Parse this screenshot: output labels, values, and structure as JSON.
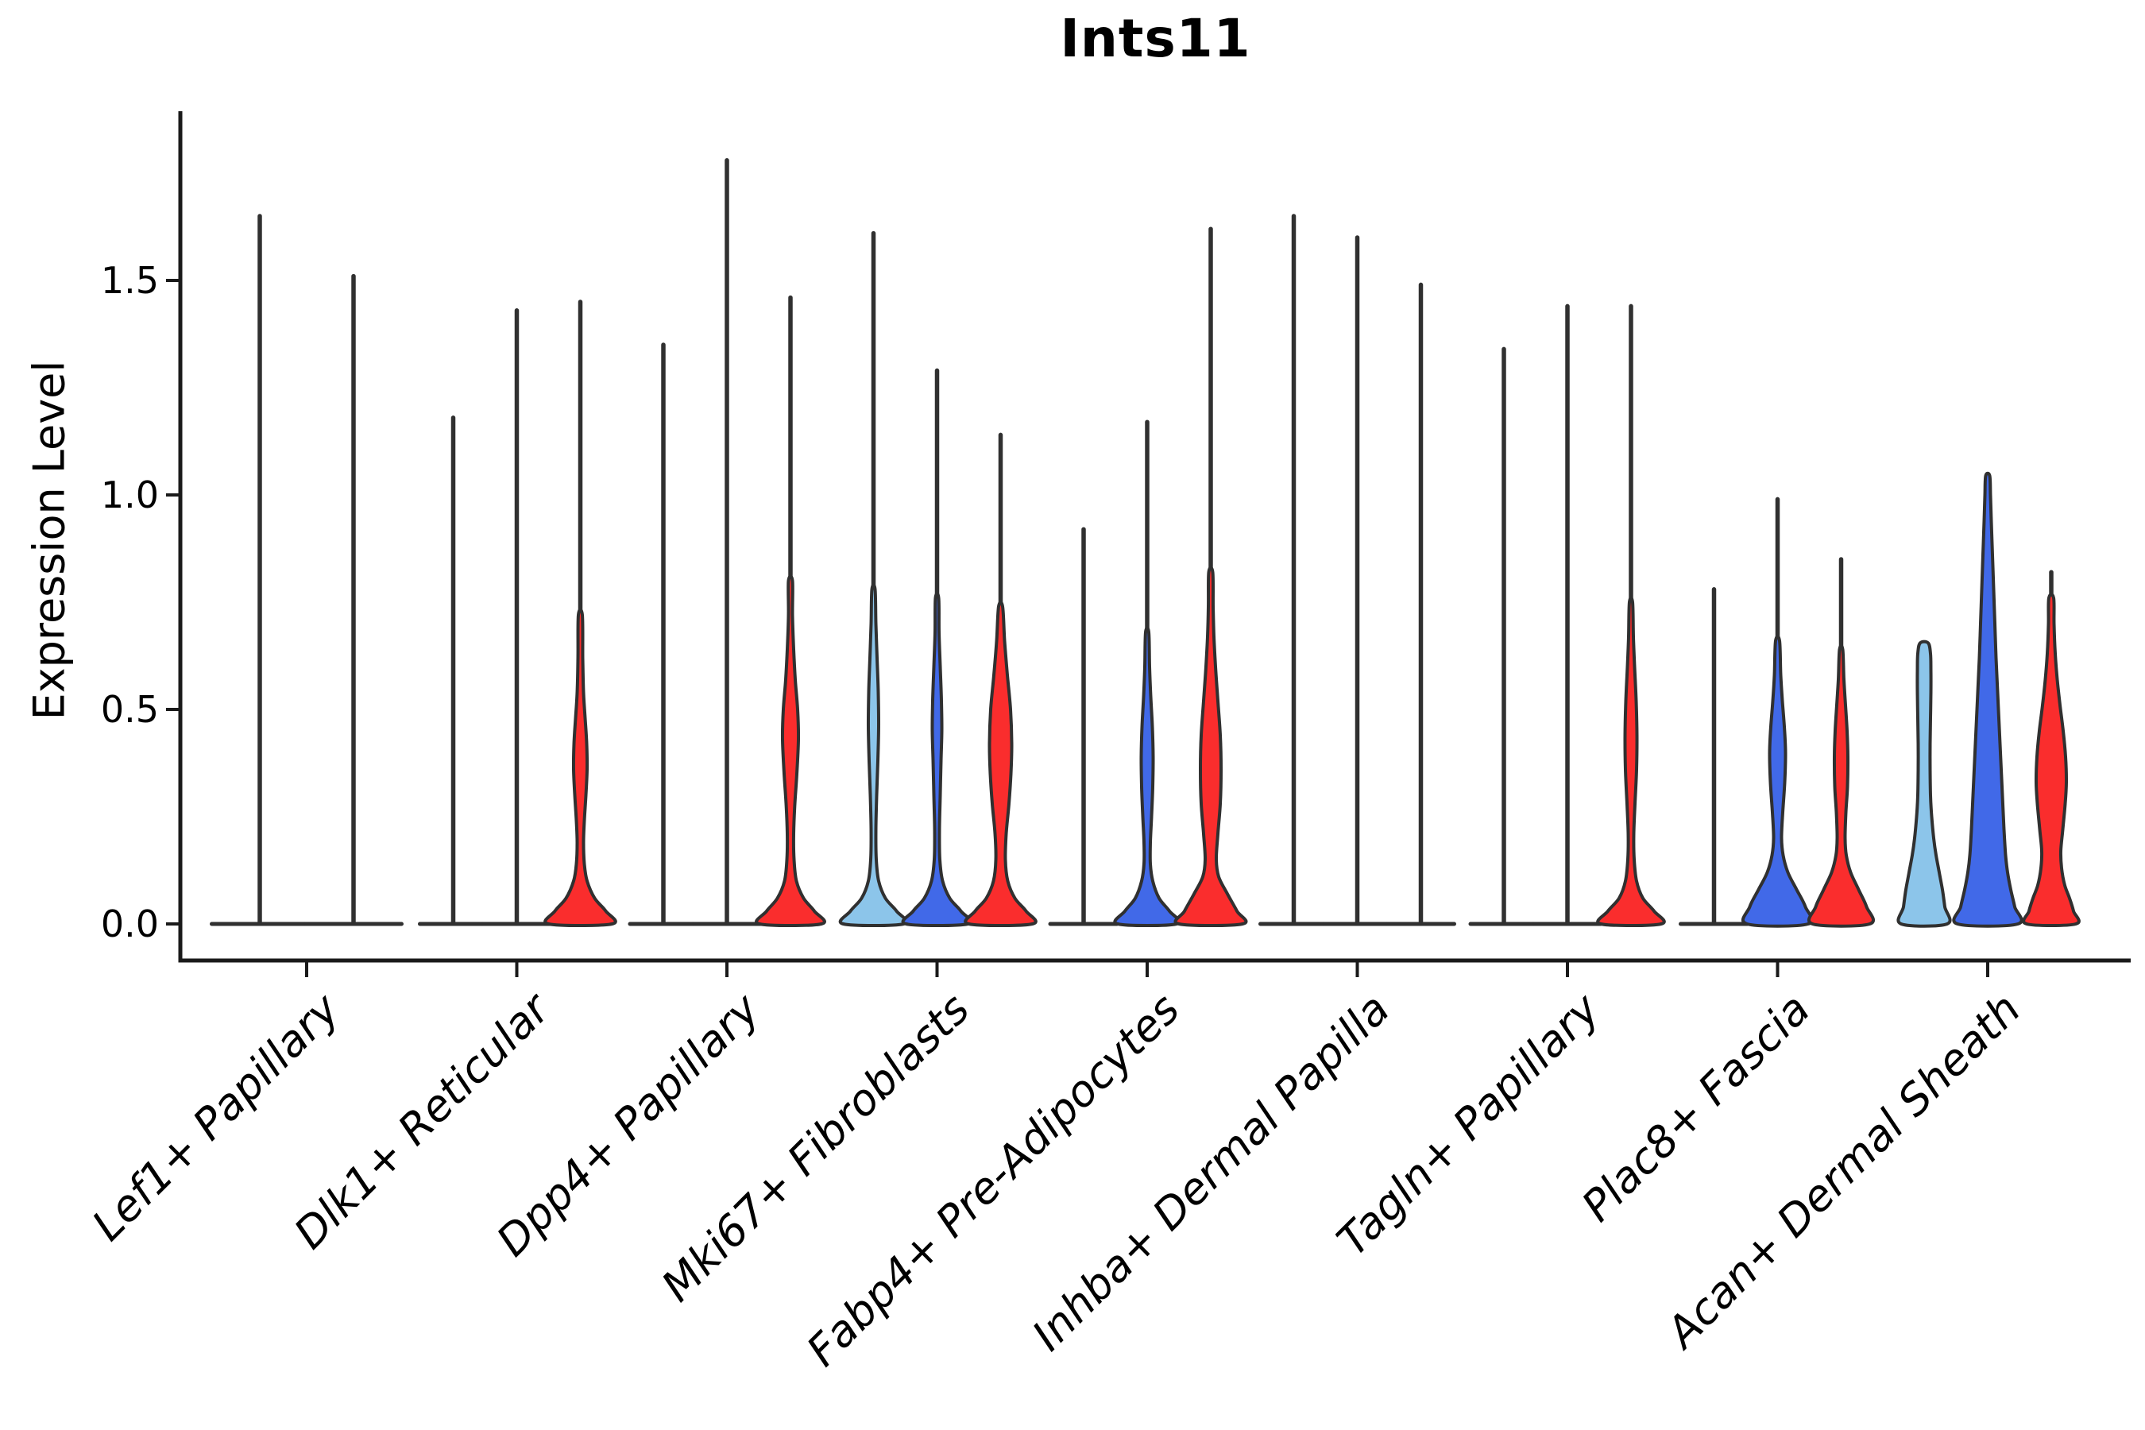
{
  "chart_data": {
    "type": "violin",
    "title": "Ints11",
    "ylabel": "Expression Level",
    "xlabel": "",
    "ytick_labels": [
      "0.0",
      "0.5",
      "1.0",
      "1.5"
    ],
    "ytick_values": [
      0,
      0.5,
      1.0,
      1.5
    ],
    "ylim": [
      -0.09,
      1.9
    ],
    "grid": false,
    "legend": "none",
    "categories": [
      "Lef1+ Papillary",
      "Dlk1+ Reticular",
      "Dpp4+ Papillary",
      "Mki67+ Fibroblasts",
      "Fabp4+ Pre-Adipocytes",
      "Inhba+ Dermal Papilla",
      "Tagln+ Papillary",
      "Plac8+ Fascia",
      "Acan+ Dermal Sheath"
    ],
    "colors": {
      "light_blue": "#8CC5EA",
      "dark_blue": "#4169E8",
      "red": "#FA2D2D",
      "outline": "#303030",
      "axis": "#1a1a1a"
    },
    "note": "Each group shows violins of expression; 'max' is the top of the thin density tail (expression units); 'body' is the visible violin body profile as [expression_value, full_width_px] pairs; body=null means the violin is fully collapsed flat at 0.",
    "groups": [
      {
        "category": "Lef1+ Papillary",
        "violins": [
          {
            "fill": null,
            "max": 1.65,
            "body": null
          },
          {
            "fill": null,
            "max": 1.51,
            "body": null
          }
        ]
      },
      {
        "category": "Dlk1+ Reticular",
        "violins": [
          {
            "fill": "#8CC5EA",
            "max": 1.18,
            "body": null
          },
          {
            "fill": "#4169E8",
            "max": 1.43,
            "body": null
          },
          {
            "fill": "#FA2D2D",
            "max": 1.45,
            "body": [
              [
                0,
                80
              ],
              [
                0.03,
                64
              ],
              [
                0.06,
                36
              ],
              [
                0.1,
                17
              ],
              [
                0.14,
                10
              ],
              [
                0.19,
                8
              ],
              [
                0.24,
                10
              ],
              [
                0.3,
                14
              ],
              [
                0.36,
                17
              ],
              [
                0.42,
                16
              ],
              [
                0.48,
                12
              ],
              [
                0.54,
                8
              ],
              [
                0.62,
                6
              ],
              [
                0.72,
                5
              ]
            ]
          }
        ]
      },
      {
        "category": "Dpp4+ Papillary",
        "violins": [
          {
            "fill": "#8CC5EA",
            "max": 1.35,
            "body": null
          },
          {
            "fill": "#4169E8",
            "max": 1.78,
            "body": null
          },
          {
            "fill": "#FA2D2D",
            "max": 1.46,
            "body": [
              [
                0,
                78
              ],
              [
                0.03,
                60
              ],
              [
                0.06,
                33
              ],
              [
                0.1,
                15
              ],
              [
                0.15,
                9
              ],
              [
                0.21,
                8
              ],
              [
                0.28,
                11
              ],
              [
                0.35,
                16
              ],
              [
                0.43,
                20
              ],
              [
                0.5,
                18
              ],
              [
                0.57,
                12
              ],
              [
                0.64,
                8
              ],
              [
                0.72,
                5
              ],
              [
                0.8,
                5
              ]
            ]
          }
        ]
      },
      {
        "category": "Mki67+ Fibroblasts",
        "violins": [
          {
            "fill": "#8CC5EA",
            "max": 1.61,
            "body": [
              [
                0,
                76
              ],
              [
                0.03,
                58
              ],
              [
                0.06,
                30
              ],
              [
                0.1,
                13
              ],
              [
                0.15,
                7
              ],
              [
                0.22,
                6
              ],
              [
                0.3,
                8
              ],
              [
                0.38,
                11
              ],
              [
                0.46,
                13
              ],
              [
                0.54,
                12
              ],
              [
                0.62,
                9
              ],
              [
                0.7,
                6
              ],
              [
                0.78,
                4
              ]
            ]
          },
          {
            "fill": "#4169E8",
            "max": 1.29,
            "body": [
              [
                0,
                78
              ],
              [
                0.03,
                60
              ],
              [
                0.06,
                32
              ],
              [
                0.1,
                14
              ],
              [
                0.15,
                7
              ],
              [
                0.22,
                6
              ],
              [
                0.3,
                8
              ],
              [
                0.38,
                10
              ],
              [
                0.45,
                12
              ],
              [
                0.52,
                11
              ],
              [
                0.6,
                8
              ],
              [
                0.68,
                5
              ],
              [
                0.76,
                4
              ]
            ]
          },
          {
            "fill": "#FA2D2D",
            "max": 1.14,
            "body": [
              [
                0,
                80
              ],
              [
                0.03,
                64
              ],
              [
                0.06,
                36
              ],
              [
                0.1,
                18
              ],
              [
                0.15,
                12
              ],
              [
                0.21,
                14
              ],
              [
                0.28,
                21
              ],
              [
                0.35,
                26
              ],
              [
                0.42,
                28
              ],
              [
                0.5,
                25
              ],
              [
                0.58,
                17
              ],
              [
                0.66,
                10
              ],
              [
                0.74,
                5
              ]
            ]
          }
        ]
      },
      {
        "category": "Fabp4+ Pre-Adipocytes",
        "violins": [
          {
            "fill": "#8CC5EA",
            "max": 0.92,
            "body": null
          },
          {
            "fill": "#4169E8",
            "max": 1.17,
            "body": [
              [
                0,
                74
              ],
              [
                0.03,
                56
              ],
              [
                0.06,
                30
              ],
              [
                0.1,
                14
              ],
              [
                0.14,
                8
              ],
              [
                0.19,
                8
              ],
              [
                0.25,
                11
              ],
              [
                0.32,
                14
              ],
              [
                0.39,
                15
              ],
              [
                0.46,
                13
              ],
              [
                0.53,
                9
              ],
              [
                0.6,
                6
              ],
              [
                0.68,
                4
              ]
            ]
          },
          {
            "fill": "#FA2D2D",
            "max": 1.62,
            "body": [
              [
                0,
                80
              ],
              [
                0.03,
                66
              ],
              [
                0.07,
                42
              ],
              [
                0.11,
                20
              ],
              [
                0.15,
                14
              ],
              [
                0.21,
                18
              ],
              [
                0.28,
                24
              ],
              [
                0.36,
                26
              ],
              [
                0.44,
                24
              ],
              [
                0.52,
                18
              ],
              [
                0.6,
                12
              ],
              [
                0.67,
                8
              ],
              [
                0.74,
                6
              ],
              [
                0.82,
                5
              ]
            ]
          }
        ]
      },
      {
        "category": "Inhba+ Dermal Papilla",
        "violins": [
          {
            "fill": "#8CC5EA",
            "max": 1.65,
            "body": null
          },
          {
            "fill": "#4169E8",
            "max": 1.6,
            "body": null
          },
          {
            "fill": "#FA2D2D",
            "max": 1.49,
            "body": null
          }
        ]
      },
      {
        "category": "Tagln+ Papillary",
        "violins": [
          {
            "fill": "#8CC5EA",
            "max": 1.34,
            "body": null
          },
          {
            "fill": "#4169E8",
            "max": 1.44,
            "body": null
          },
          {
            "fill": "#FA2D2D",
            "max": 1.44,
            "body": [
              [
                0,
                76
              ],
              [
                0.03,
                58
              ],
              [
                0.06,
                30
              ],
              [
                0.1,
                14
              ],
              [
                0.15,
                8
              ],
              [
                0.21,
                7
              ],
              [
                0.28,
                10
              ],
              [
                0.36,
                14
              ],
              [
                0.44,
                15
              ],
              [
                0.52,
                13
              ],
              [
                0.6,
                9
              ],
              [
                0.67,
                6
              ],
              [
                0.75,
                4
              ]
            ]
          }
        ]
      },
      {
        "category": "Plac8+ Fascia",
        "violins": [
          {
            "fill": "#8CC5EA",
            "max": 0.78,
            "body": null
          },
          {
            "fill": "#4169E8",
            "max": 0.99,
            "body": [
              [
                0,
                77
              ],
              [
                0.04,
                70
              ],
              [
                0.08,
                48
              ],
              [
                0.12,
                26
              ],
              [
                0.16,
                14
              ],
              [
                0.2,
                10
              ],
              [
                0.26,
                13
              ],
              [
                0.33,
                18
              ],
              [
                0.4,
                20
              ],
              [
                0.46,
                17
              ],
              [
                0.52,
                12
              ],
              [
                0.58,
                8
              ],
              [
                0.66,
                5
              ]
            ]
          },
          {
            "fill": "#FA2D2D",
            "max": 0.85,
            "body": [
              [
                0,
                72
              ],
              [
                0.04,
                64
              ],
              [
                0.08,
                44
              ],
              [
                0.12,
                24
              ],
              [
                0.16,
                13
              ],
              [
                0.2,
                10
              ],
              [
                0.26,
                12
              ],
              [
                0.32,
                16
              ],
              [
                0.39,
                17
              ],
              [
                0.45,
                15
              ],
              [
                0.51,
                11
              ],
              [
                0.57,
                7
              ],
              [
                0.64,
                4
              ]
            ]
          }
        ]
      },
      {
        "category": "Acan+ Dermal Sheath",
        "violins": [
          {
            "fill": "#8CC5EA",
            "max": 0.66,
            "body": [
              [
                0,
                58
              ],
              [
                0.04,
                52
              ],
              [
                0.08,
                46
              ],
              [
                0.12,
                38
              ],
              [
                0.16,
                30
              ],
              [
                0.2,
                24
              ],
              [
                0.25,
                19
              ],
              [
                0.3,
                16
              ],
              [
                0.36,
                15
              ],
              [
                0.42,
                15
              ],
              [
                0.48,
                16
              ],
              [
                0.54,
                17
              ],
              [
                0.59,
                17
              ],
              [
                0.63,
                16
              ],
              [
                0.655,
                10
              ]
            ]
          },
          {
            "fill": "#4169E8",
            "max": 1.05,
            "body": [
              [
                0,
                76
              ],
              [
                0.04,
                68
              ],
              [
                0.08,
                58
              ],
              [
                0.12,
                50
              ],
              [
                0.16,
                45
              ],
              [
                0.22,
                41
              ],
              [
                0.3,
                37
              ],
              [
                0.38,
                33
              ],
              [
                0.46,
                29
              ],
              [
                0.54,
                25
              ],
              [
                0.62,
                21
              ],
              [
                0.7,
                18
              ],
              [
                0.78,
                15
              ],
              [
                0.86,
                12
              ],
              [
                0.94,
                9
              ],
              [
                1.0,
                7
              ],
              [
                1.045,
                5
              ]
            ]
          },
          {
            "fill": "#FA2D2D",
            "max": 0.82,
            "body": [
              [
                0,
                62
              ],
              [
                0.03,
                56
              ],
              [
                0.06,
                46
              ],
              [
                0.09,
                34
              ],
              [
                0.13,
                26
              ],
              [
                0.17,
                24
              ],
              [
                0.22,
                29
              ],
              [
                0.28,
                35
              ],
              [
                0.33,
                38
              ],
              [
                0.39,
                36
              ],
              [
                0.45,
                30
              ],
              [
                0.51,
                22
              ],
              [
                0.57,
                15
              ],
              [
                0.63,
                10
              ],
              [
                0.7,
                7
              ],
              [
                0.76,
                6
              ]
            ]
          }
        ]
      }
    ]
  }
}
